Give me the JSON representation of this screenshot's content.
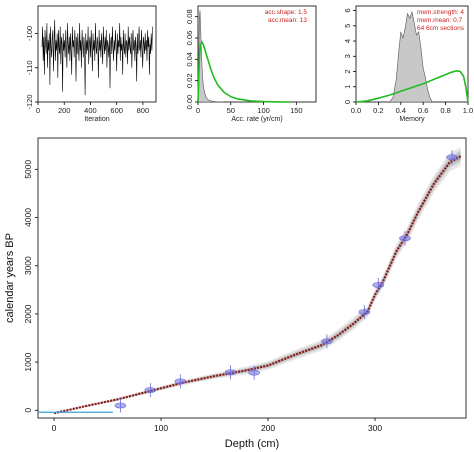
{
  "chart_data": [
    {
      "id": "iterations",
      "type": "line",
      "xlabel": "Iteration",
      "ylabel": "",
      "xlim": [
        0,
        900
      ],
      "ylim": [
        -120,
        -92
      ],
      "xticks": [
        0,
        200,
        400,
        600,
        800
      ],
      "yticks": [
        -100,
        -110,
        -120
      ],
      "series": [
        {
          "values": [
            -104,
            -98,
            -108,
            -101,
            -112,
            -99,
            -103,
            -106,
            -97,
            -110,
            -102,
            -105,
            -100,
            -115,
            -98,
            -104,
            -107,
            -101,
            -99,
            -111,
            -103,
            -96,
            -108,
            -102,
            -105,
            -100,
            -113,
            -99,
            -104,
            -106,
            -98,
            -109,
            -101,
            -103,
            -117,
            -100,
            -105,
            -102,
            -107,
            -99,
            -104,
            -110,
            -97,
            -103,
            -106,
            -101,
            -108,
            -100,
            -105,
            -112,
            -98,
            -104,
            -102,
            -107,
            -99,
            -103,
            -114,
            -101,
            -106,
            -100,
            -104,
            -108,
            -97,
            -105,
            -102,
            -110,
            -99,
            -103,
            -107,
            -101,
            -104,
            -118,
            -100,
            -106,
            -102,
            -105,
            -98,
            -109,
            -103,
            -101,
            -107,
            -99,
            -104,
            -111,
            -100,
            -105,
            -102,
            -108,
            -97,
            -104,
            -106,
            -101,
            -103,
            -113,
            -99,
            -105,
            -102,
            -107,
            -100,
            -104,
            -109,
            -98,
            -103,
            -106,
            -101,
            -105,
            -99,
            -110,
            -102,
            -104,
            -107,
            -100,
            -116,
            -103,
            -101,
            -106,
            -98,
            -104,
            -108,
            -102,
            -105,
            -99,
            -103,
            -111,
            -100,
            -106,
            -102,
            -104,
            -97,
            -108,
            -101,
            -105,
            -103,
            -112,
            -99,
            -104,
            -106,
            -100,
            -107,
            -102,
            -103,
            -109,
            -98,
            -105,
            -101,
            -104,
            -106,
            -100,
            -110,
            -103,
            -99,
            -105,
            -102,
            -108,
            -101,
            -104,
            -114,
            -100,
            -106,
            -103,
            -98,
            -105,
            -102,
            -107,
            -99,
            -104,
            -110,
            -101,
            -103,
            -106,
            -100,
            -105,
            -102,
            -108,
            -99,
            -104,
            -101,
            -112,
            -103,
            -106,
            -100,
            -105,
            -98
          ]
        }
      ]
    },
    {
      "id": "acc-rate",
      "type": "area",
      "xlabel": "Acc. rate (yr/cm)",
      "ylabel": "",
      "xlim": [
        0,
        180
      ],
      "ylim": [
        0,
        0.09
      ],
      "xticks": [
        0,
        50,
        100,
        150
      ],
      "yticks": [
        0.0,
        0.02,
        0.04,
        0.06,
        0.08
      ],
      "annotations": [
        "acc.shape:  1.5",
        "acc.mean:  13"
      ],
      "series": [
        {
          "type": "posterior",
          "x": [
            0,
            1,
            2,
            3,
            4,
            5,
            6,
            7,
            8,
            10,
            12,
            14,
            16,
            18,
            20,
            25,
            30,
            40
          ],
          "y": [
            0.0,
            0.03,
            0.078,
            0.086,
            0.07,
            0.05,
            0.035,
            0.024,
            0.016,
            0.009,
            0.005,
            0.003,
            0.002,
            0.0015,
            0.001,
            0.0005,
            0.0002,
            0.0
          ]
        },
        {
          "type": "prior",
          "x": [
            0,
            2,
            4,
            6,
            8,
            10,
            13,
            16,
            20,
            25,
            30,
            40,
            50,
            60,
            80,
            100,
            120,
            140
          ],
          "y": [
            0.0,
            0.04,
            0.054,
            0.056,
            0.054,
            0.05,
            0.044,
            0.038,
            0.03,
            0.022,
            0.016,
            0.009,
            0.005,
            0.003,
            0.001,
            0.0004,
            0.0001,
            0.0
          ]
        }
      ]
    },
    {
      "id": "memory",
      "type": "area",
      "xlabel": "Memory",
      "ylabel": "",
      "xlim": [
        0,
        1
      ],
      "ylim": [
        0,
        6.3
      ],
      "xticks": [
        0.0,
        0.2,
        0.4,
        0.6,
        0.8,
        1.0
      ],
      "yticks": [
        0,
        1,
        2,
        3,
        4,
        5,
        6
      ],
      "annotations": [
        "mem.strength:  4",
        "mem.mean:  0.7",
        "64 6cm sections"
      ],
      "series": [
        {
          "type": "posterior",
          "x": [
            0.3,
            0.33,
            0.36,
            0.38,
            0.4,
            0.42,
            0.44,
            0.46,
            0.48,
            0.5,
            0.52,
            0.54,
            0.56,
            0.58,
            0.6,
            0.62,
            0.64,
            0.66,
            0.68
          ],
          "y": [
            0.0,
            0.3,
            1.5,
            3.2,
            4.6,
            4.2,
            4.9,
            5.8,
            5.5,
            5.9,
            5.2,
            4.4,
            4.6,
            3.5,
            2.2,
            1.6,
            0.8,
            0.3,
            0.0
          ]
        },
        {
          "type": "prior",
          "x": [
            0.0,
            0.1,
            0.2,
            0.3,
            0.4,
            0.5,
            0.6,
            0.7,
            0.8,
            0.85,
            0.9,
            0.93,
            0.96,
            0.98,
            1.0
          ],
          "y": [
            0.0,
            0.07,
            0.25,
            0.45,
            0.7,
            0.95,
            1.2,
            1.5,
            1.8,
            1.95,
            2.05,
            2.0,
            1.7,
            1.0,
            0.0
          ]
        }
      ]
    },
    {
      "id": "age-depth",
      "type": "scatter",
      "xlabel": "Depth (cm)",
      "ylabel": "calendar years BP",
      "xlim": [
        -15,
        385
      ],
      "ylim": [
        -160,
        5650
      ],
      "xticks": [
        0,
        100,
        200,
        300
      ],
      "yticks": [
        0,
        1000,
        2000,
        3000,
        4000,
        5000
      ],
      "model": {
        "depth": [
          0,
          30,
          60,
          90,
          120,
          150,
          180,
          200,
          225,
          250,
          265,
          280,
          293,
          300,
          307,
          320,
          330,
          340,
          355,
          370,
          380
        ],
        "age": [
          -60,
          90,
          230,
          400,
          570,
          710,
          830,
          930,
          1150,
          1350,
          1550,
          1800,
          2050,
          2400,
          2650,
          3300,
          3650,
          4100,
          4700,
          5150,
          5270
        ],
        "spread": [
          10,
          20,
          30,
          40,
          50,
          60,
          80,
          90,
          100,
          110,
          120,
          130,
          110,
          120,
          130,
          150,
          160,
          170,
          180,
          190,
          200
        ]
      },
      "dates": [
        {
          "depth": 62,
          "age": 100
        },
        {
          "depth": 90,
          "age": 420
        },
        {
          "depth": 118,
          "age": 600
        },
        {
          "depth": 165,
          "age": 790
        },
        {
          "depth": 187,
          "age": 780
        },
        {
          "depth": 255,
          "age": 1430
        },
        {
          "depth": 290,
          "age": 2040
        },
        {
          "depth": 303,
          "age": 2600
        },
        {
          "depth": 328,
          "age": 3570
        },
        {
          "depth": 372,
          "age": 5250
        }
      ],
      "surface_line": {
        "depth": [
          -15,
          55
        ],
        "age": -40
      }
    }
  ],
  "colors": {
    "posterior_fill": "#c8c8c8",
    "posterior_line": "#555555",
    "prior_line": "#22bb22",
    "annotation_red": "#cc1f1f",
    "date_marker": "#6b6bdd",
    "model_line": "#8b1a1a",
    "model_cloud": "#7a7a7a",
    "surface_line": "#3fa0d0",
    "trace_line": "#000000"
  }
}
